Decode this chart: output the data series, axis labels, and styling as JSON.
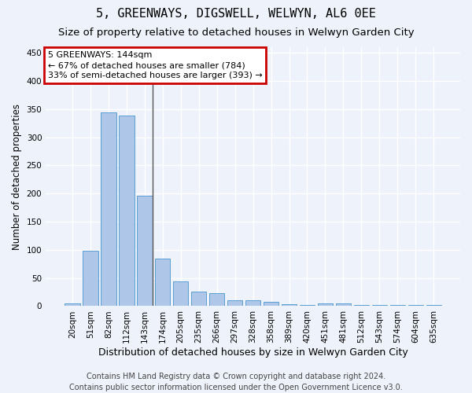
{
  "title": "5, GREENWAYS, DIGSWELL, WELWYN, AL6 0EE",
  "subtitle": "Size of property relative to detached houses in Welwyn Garden City",
  "xlabel": "Distribution of detached houses by size in Welwyn Garden City",
  "ylabel": "Number of detached properties",
  "footer_line1": "Contains HM Land Registry data © Crown copyright and database right 2024.",
  "footer_line2": "Contains public sector information licensed under the Open Government Licence v3.0.",
  "categories": [
    "20sqm",
    "51sqm",
    "82sqm",
    "112sqm",
    "143sqm",
    "174sqm",
    "205sqm",
    "235sqm",
    "266sqm",
    "297sqm",
    "328sqm",
    "358sqm",
    "389sqm",
    "420sqm",
    "451sqm",
    "481sqm",
    "512sqm",
    "543sqm",
    "574sqm",
    "604sqm",
    "635sqm"
  ],
  "values": [
    5,
    98,
    344,
    338,
    196,
    85,
    44,
    26,
    23,
    10,
    10,
    7,
    3,
    2,
    5,
    5,
    2,
    2,
    2,
    2,
    2
  ],
  "bar_color": "#aec6e8",
  "bar_edge_color": "#5a9fd4",
  "marker_index": 4,
  "marker_color": "#555555",
  "annotation_title": "5 GREENWAYS: 144sqm",
  "annotation_line2": "← 67% of detached houses are smaller (784)",
  "annotation_line3": "33% of semi-detached houses are larger (393) →",
  "annotation_box_color": "#cc0000",
  "ylim": [
    0,
    460
  ],
  "yticks": [
    0,
    50,
    100,
    150,
    200,
    250,
    300,
    350,
    400,
    450
  ],
  "bg_color": "#eef2fa",
  "plot_bg_color": "#eef2fa",
  "grid_color": "#ffffff",
  "title_fontsize": 11,
  "subtitle_fontsize": 9.5,
  "xlabel_fontsize": 9,
  "ylabel_fontsize": 8.5,
  "tick_fontsize": 7.5,
  "footer_fontsize": 7
}
